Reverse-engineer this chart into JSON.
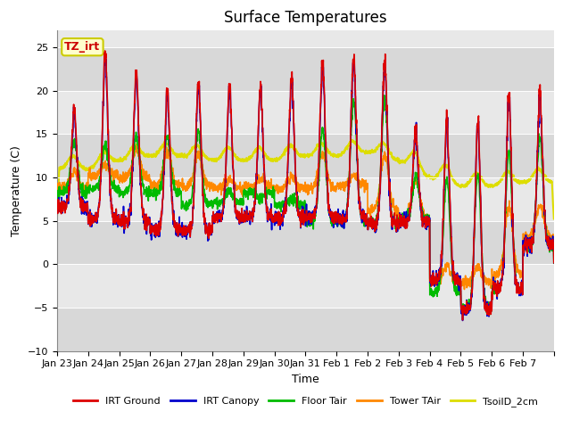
{
  "title": "Surface Temperatures",
  "xlabel": "Time",
  "ylabel": "Temperature (C)",
  "ylim": [
    -10,
    27
  ],
  "yticks": [
    -10,
    -5,
    0,
    5,
    10,
    15,
    20,
    25
  ],
  "plot_bg_light": "#e8e8e8",
  "plot_bg_dark": "#d0d0d0",
  "fig_bg": "#ffffff",
  "annotation_text": "TZ_irt",
  "annotation_color": "#cc0000",
  "annotation_bg": "#ffffcc",
  "annotation_border": "#cccc00",
  "x_labels": [
    "Jan 23",
    "Jan 24",
    "Jan 25",
    "Jan 26",
    "Jan 27",
    "Jan 28",
    "Jan 29",
    "Jan 30",
    "Jan 31",
    "Feb 1",
    "Feb 2",
    "Feb 3",
    "Feb 4",
    "Feb 5",
    "Feb 6",
    "Feb 7"
  ],
  "series_colors": [
    "#dd0000",
    "#0000cc",
    "#00bb00",
    "#ff8800",
    "#dddd00"
  ],
  "series_labels": [
    "IRT Ground",
    "IRT Canopy",
    "Floor Tair",
    "Tower TAir",
    "TsoilD_2cm"
  ],
  "line_width": 1.2,
  "title_fontsize": 12,
  "tick_fontsize": 8,
  "label_fontsize": 9
}
